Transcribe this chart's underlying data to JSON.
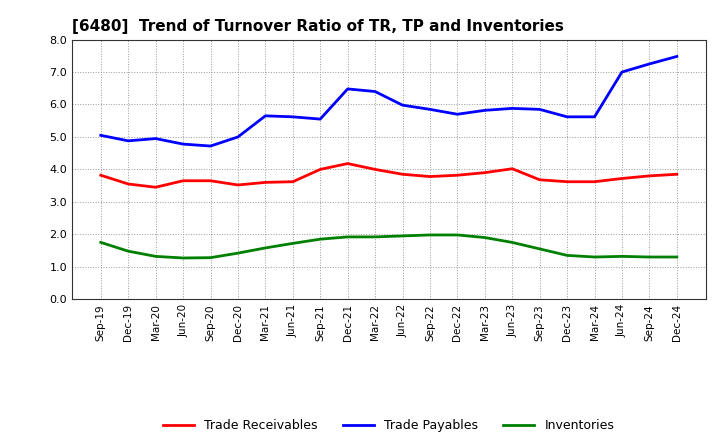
{
  "title": "[6480]  Trend of Turnover Ratio of TR, TP and Inventories",
  "labels": [
    "Sep-19",
    "Dec-19",
    "Mar-20",
    "Jun-20",
    "Sep-20",
    "Dec-20",
    "Mar-21",
    "Jun-21",
    "Sep-21",
    "Dec-21",
    "Mar-22",
    "Jun-22",
    "Sep-22",
    "Dec-22",
    "Mar-23",
    "Jun-23",
    "Sep-23",
    "Dec-23",
    "Mar-24",
    "Jun-24",
    "Sep-24",
    "Dec-24"
  ],
  "trade_receivables": [
    3.82,
    3.55,
    3.45,
    3.65,
    3.65,
    3.52,
    3.6,
    3.62,
    4.0,
    4.18,
    4.0,
    3.85,
    3.78,
    3.82,
    3.9,
    4.02,
    3.68,
    3.62,
    3.62,
    3.72,
    3.8,
    3.85
  ],
  "trade_payables": [
    5.05,
    4.88,
    4.95,
    4.78,
    4.72,
    5.0,
    5.65,
    5.62,
    5.55,
    6.48,
    6.4,
    5.98,
    5.85,
    5.7,
    5.82,
    5.88,
    5.85,
    5.62,
    5.62,
    7.0,
    7.25,
    7.48
  ],
  "inventories": [
    1.75,
    1.48,
    1.32,
    1.27,
    1.28,
    1.42,
    1.58,
    1.72,
    1.85,
    1.92,
    1.92,
    1.95,
    1.98,
    1.98,
    1.9,
    1.75,
    1.55,
    1.35,
    1.3,
    1.32,
    1.3,
    1.3
  ],
  "tr_color": "#FF0000",
  "tp_color": "#0000FF",
  "inv_color": "#008000",
  "ylim": [
    0.0,
    8.0
  ],
  "yticks": [
    0.0,
    1.0,
    2.0,
    3.0,
    4.0,
    5.0,
    6.0,
    7.0,
    8.0
  ],
  "legend_labels": [
    "Trade Receivables",
    "Trade Payables",
    "Inventories"
  ],
  "background_color": "#ffffff",
  "grid_color": "#999999"
}
